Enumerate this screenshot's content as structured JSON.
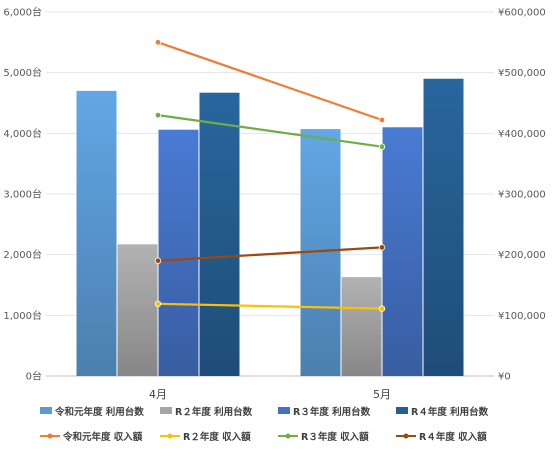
{
  "chart_data": {
    "type": "bar",
    "title": "",
    "categories": [
      "4月",
      "5月"
    ],
    "y_left": {
      "ticks": [
        "0台",
        "1,000台",
        "2,000台",
        "3,000台",
        "4,000台",
        "5,000台",
        "6,000台"
      ],
      "ylim": [
        0,
        6000
      ]
    },
    "y_right": {
      "ticks": [
        "¥0",
        "¥100,000",
        "¥200,000",
        "¥300,000",
        "¥400,000",
        "¥500,000",
        "¥600,000"
      ],
      "ylim": [
        0,
        600000
      ]
    },
    "bar_series": [
      {
        "name": "令和元年度 利用台数",
        "values": [
          4700,
          4070
        ],
        "color": "#5b9bd5"
      },
      {
        "name": "R２年度 利用台数",
        "values": [
          2170,
          1630
        ],
        "color": "#a5a5a5"
      },
      {
        "name": "R３年度 利用台数",
        "values": [
          4060,
          4100
        ],
        "color": "#4472c4"
      },
      {
        "name": "R４年度 利用台数",
        "values": [
          4670,
          4900
        ],
        "color": "#255e91"
      }
    ],
    "line_series": [
      {
        "name": "令和元年度 収入額",
        "values": [
          550000,
          422000
        ],
        "color": "#ed7d31"
      },
      {
        "name": "R２年度 収入額",
        "values": [
          119000,
          111000
        ],
        "color": "#ffc000"
      },
      {
        "name": "R３年度 収入額",
        "values": [
          430000,
          378000
        ],
        "color": "#70ad47"
      },
      {
        "name": "R４年度 収入額",
        "values": [
          190000,
          212000
        ],
        "color": "#9e480e"
      }
    ],
    "grid": true,
    "legend_position": "bottom"
  }
}
